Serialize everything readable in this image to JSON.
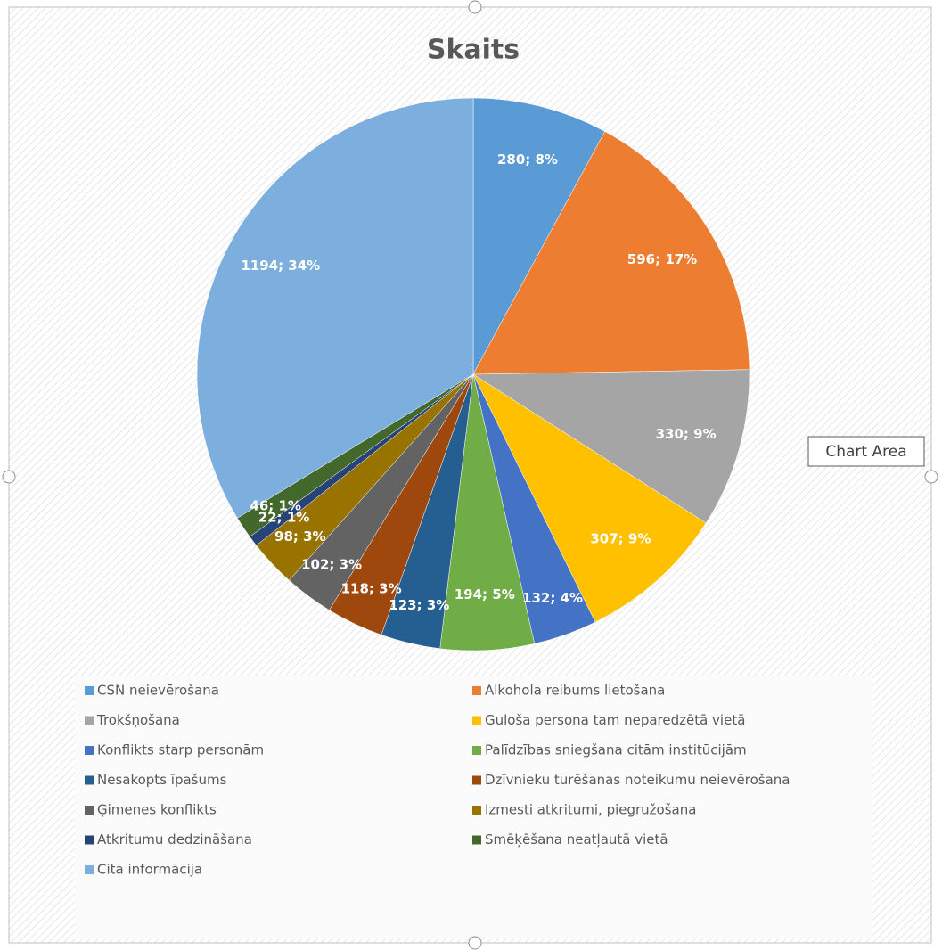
{
  "chart_data": {
    "type": "pie",
    "title": "Skaits",
    "categories": [
      "CSN neievērošana",
      "Alkohola reibums lietošana",
      "Trokšņošana",
      "Guloša persona tam neparedzētā vietā",
      "Konflikts starp personām",
      "Palīdzības sniegšana citām institūcijām",
      "Nesakopts īpašums",
      "Dzīvnieku turēšanas noteikumu neievērošana",
      "Ģimenes konflikts",
      "Izmesti atkritumi, piegružošana",
      "Atkritumu dedzināšana",
      "Smēķēšana neatļautā vietā",
      "Cita informācija"
    ],
    "values": [
      280,
      596,
      330,
      307,
      132,
      194,
      123,
      118,
      102,
      98,
      22,
      46,
      1194
    ],
    "value_labels": [
      "280; 8%",
      "596; 17%",
      "330; 9%",
      "307; 9%",
      "132; 4%",
      "194; 5%",
      "123; 3%",
      "118; 3%",
      "102; 3%",
      "98; 3%",
      "22; 1%",
      "46; 1%",
      "1194; 34%"
    ],
    "colors": [
      "#5b9bd5",
      "#ed7d31",
      "#a5a5a5",
      "#ffc000",
      "#4472c4",
      "#70ad47",
      "#255e91",
      "#9e480e",
      "#636363",
      "#997300",
      "#264478",
      "#43682b",
      "#7cafdd"
    ],
    "tooltip": "Chart Area"
  }
}
